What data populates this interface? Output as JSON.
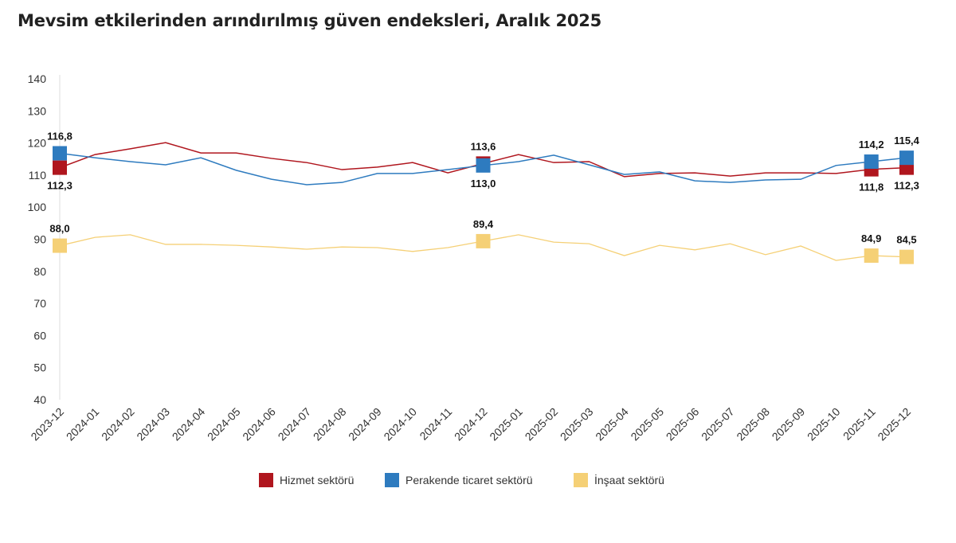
{
  "chart_data": {
    "type": "line",
    "title": "Mevsim etkilerinden arındırılmış güven endeksleri, Aralık 2025",
    "xlabel": "",
    "ylabel": "",
    "ylim": [
      40,
      140
    ],
    "yticks": [
      40,
      50,
      60,
      70,
      80,
      90,
      100,
      110,
      120,
      130,
      140
    ],
    "grid": false,
    "legend": "bottom",
    "categories": [
      "2023-12",
      "2024-01",
      "2024-02",
      "2024-03",
      "2024-04",
      "2024-05",
      "2024-06",
      "2024-07",
      "2024-08",
      "2024-09",
      "2024-10",
      "2024-11",
      "2024-12",
      "2025-01",
      "2025-02",
      "2025-03",
      "2025-04",
      "2025-05",
      "2025-06",
      "2025-07",
      "2025-08",
      "2025-09",
      "2025-10",
      "2025-11",
      "2025-12"
    ],
    "series": [
      {
        "name": "Hizmet sektörü",
        "color": "#b0161e",
        "values": [
          112.3,
          116.4,
          118.2,
          120.1,
          116.9,
          116.9,
          115.2,
          113.9,
          111.7,
          112.5,
          113.9,
          110.7,
          113.6,
          116.4,
          113.9,
          114.2,
          109.5,
          110.5,
          110.7,
          109.7,
          110.7,
          110.7,
          110.5,
          111.8,
          112.3
        ],
        "labels": {
          "0": "112,3",
          "12": "113,6",
          "23": "111,8",
          "24": "112,3"
        },
        "label_pos": {
          "0": "below",
          "12": "above",
          "23": "below",
          "24": "below"
        }
      },
      {
        "name": "Perakende ticaret sektörü",
        "color": "#2e7bbf",
        "values": [
          116.8,
          115.4,
          114.2,
          113.2,
          115.4,
          111.5,
          108.7,
          107.0,
          107.7,
          110.5,
          110.5,
          111.7,
          113.0,
          114.2,
          116.2,
          113.2,
          110.2,
          111.0,
          108.2,
          107.7,
          108.5,
          108.7,
          113.0,
          114.2,
          115.4
        ],
        "labels": {
          "0": "116,8",
          "12": "113,0",
          "23": "114,2",
          "24": "115,4"
        },
        "label_pos": {
          "0": "above",
          "12": "below",
          "23": "above",
          "24": "above"
        }
      },
      {
        "name": "İnşaat sektörü",
        "color": "#f5d076",
        "values": [
          88.0,
          90.6,
          91.4,
          88.4,
          88.4,
          88.1,
          87.6,
          86.9,
          87.6,
          87.4,
          86.2,
          87.4,
          89.4,
          91.4,
          89.1,
          88.6,
          84.9,
          88.1,
          86.7,
          88.6,
          85.2,
          87.9,
          83.4,
          84.9,
          84.5
        ],
        "labels": {
          "0": "88,0",
          "12": "89,4",
          "23": "84,9",
          "24": "84,5"
        },
        "label_pos": {
          "0": "above",
          "12": "above",
          "23": "above",
          "24": "above"
        }
      }
    ]
  }
}
